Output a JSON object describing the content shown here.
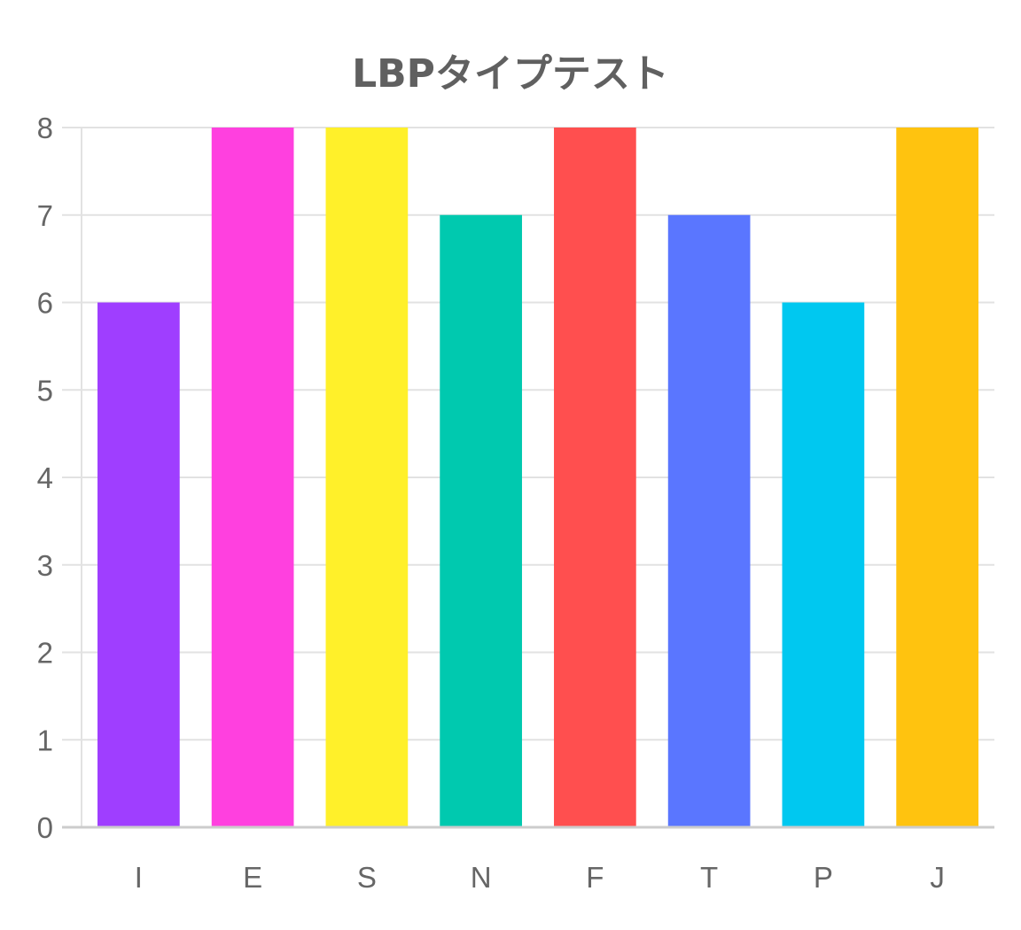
{
  "chart_data": {
    "type": "bar",
    "title": "LBPタイプテスト",
    "xlabel": "",
    "ylabel": "",
    "categories": [
      "I",
      "E",
      "S",
      "N",
      "F",
      "T",
      "P",
      "J"
    ],
    "values": [
      6,
      8,
      8,
      7,
      8,
      7,
      6,
      8
    ],
    "colors": [
      "#9f3eff",
      "#ff40df",
      "#fff02a",
      "#00c9af",
      "#ff4f4f",
      "#5a76ff",
      "#00c8f0",
      "#ffc30f"
    ],
    "ylim": [
      0,
      8
    ],
    "yticks": [
      "0",
      "1",
      "2",
      "3",
      "4",
      "5",
      "6",
      "7",
      "8"
    ],
    "grid": true,
    "legend": "none"
  }
}
